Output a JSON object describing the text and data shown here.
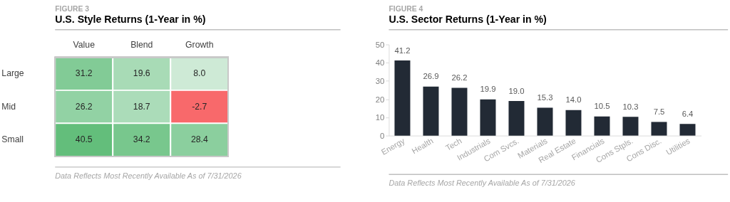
{
  "chart_data": [
    {
      "type": "heatmap",
      "subtitle": "FIGURE 3",
      "title": "U.S. Style Returns (1-Year in %)",
      "categories": [
        "Value",
        "Blend",
        "Growth"
      ],
      "y_categories": [
        "Large",
        "Mid",
        "Small"
      ],
      "cells": [
        [
          31.2,
          19.6,
          8.0
        ],
        [
          26.2,
          18.7,
          -2.7
        ],
        [
          40.5,
          34.2,
          28.4
        ]
      ],
      "cell_labels": [
        [
          "31.2",
          "19.6",
          "8.0"
        ],
        [
          "26.2",
          "18.7",
          "-2.7"
        ],
        [
          "40.5",
          "34.2",
          "28.4"
        ]
      ],
      "annotations": [
        "Data Reflects Most Recently Available As of 7/31/2026"
      ]
    },
    {
      "type": "bar",
      "subtitle": "FIGURE 4",
      "title": "U.S. Sector Returns (1-Year in %)",
      "categories": [
        "Energy",
        "Health",
        "Tech",
        "Industrials",
        "Com Svcs.",
        "Materials",
        "Real Estate",
        "Financials",
        "Cons Stpls.",
        "Cons Disc.",
        "Utilities"
      ],
      "values": [
        41.2,
        26.9,
        26.2,
        19.9,
        19.0,
        15.3,
        14.0,
        10.5,
        10.3,
        7.5,
        6.4
      ],
      "color": "#222a35",
      "ylim": [
        0,
        50
      ],
      "yticks": [
        0,
        10,
        20,
        30,
        40,
        50
      ],
      "grid": false,
      "value_labels": [
        "41.2",
        "26.9",
        "26.2",
        "19.9",
        "19.0",
        "15.3",
        "14.0",
        "10.5",
        "10.3",
        "7.5",
        "6.4"
      ],
      "annotations": [
        "Data Reflects Most Recently Available As of 7/31/2026"
      ]
    }
  ]
}
